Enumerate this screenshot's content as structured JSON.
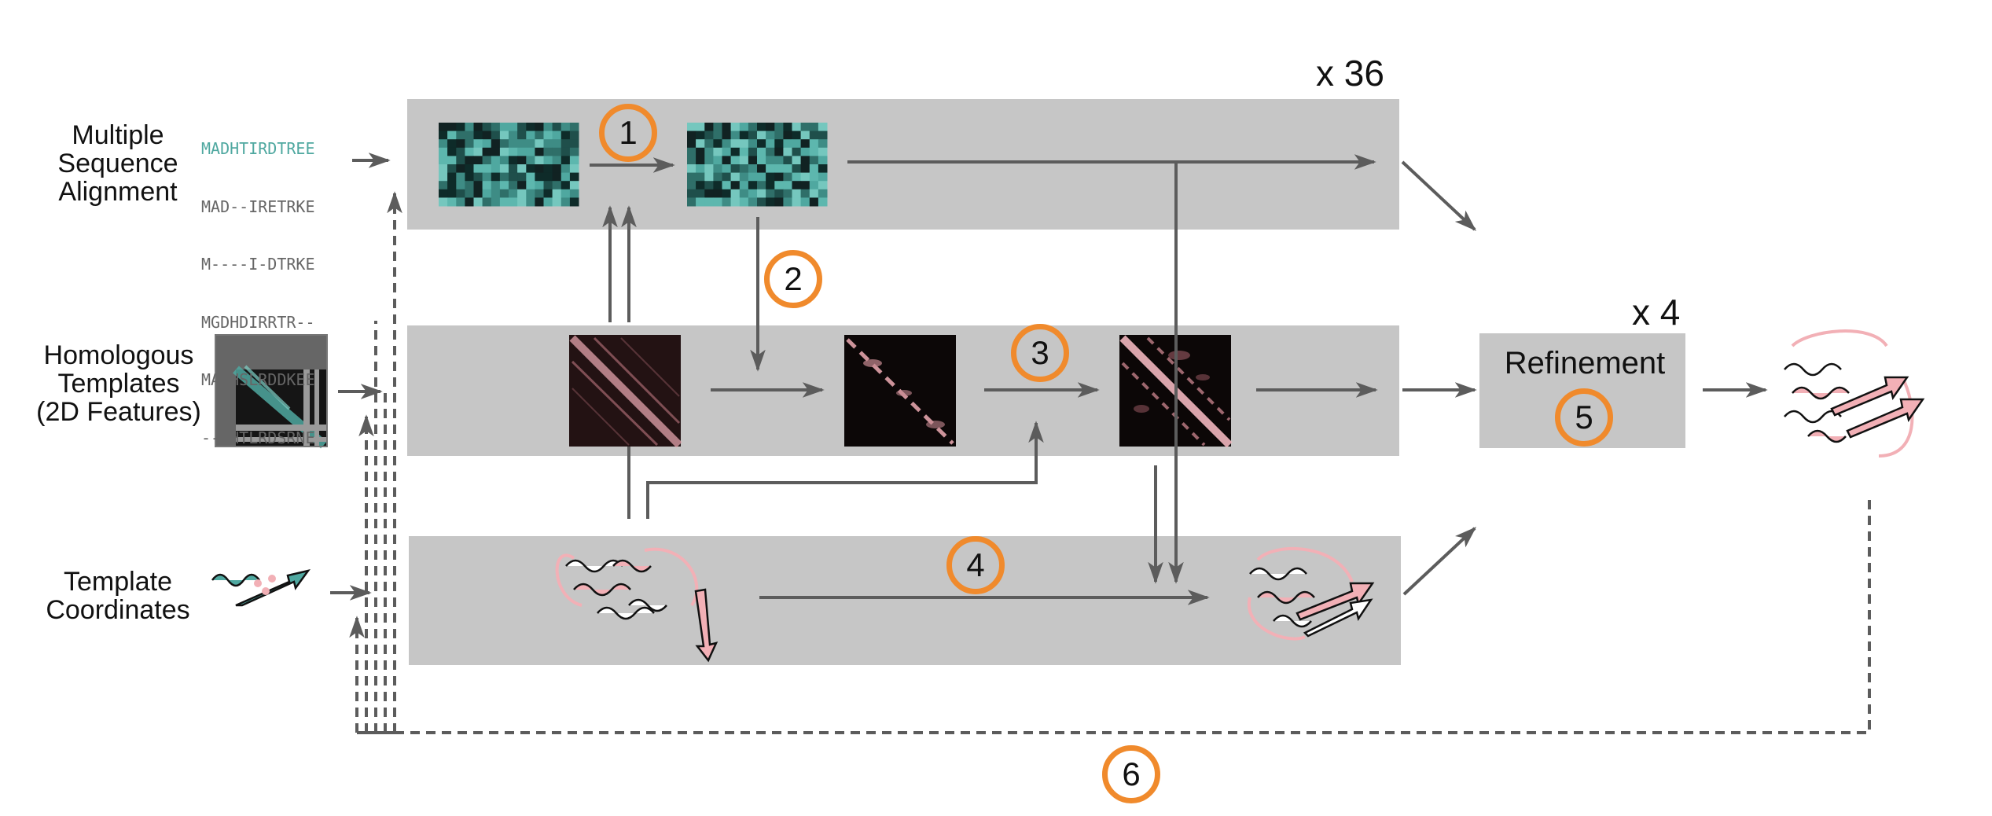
{
  "inputs": {
    "msa_label": [
      "Multiple",
      "Sequence",
      "Alignment"
    ],
    "templates_label": [
      "Homologous",
      "Templates",
      "(2D Features)"
    ],
    "coords_label": [
      "Template",
      "Coordinates"
    ]
  },
  "sequences": [
    "MADHTIRDTREE",
    "MAD--IRETRKE",
    "M----I-DTRKE",
    "MGDHDIRRTR--",
    "MAEHSLRDDKEE",
    "---HTLRDSRNE"
  ],
  "multipliers": {
    "trunk": "x 36",
    "refinement": "x 4"
  },
  "refinement": {
    "label": "Refinement"
  },
  "steps": [
    "1",
    "2",
    "3",
    "4",
    "5",
    "6"
  ],
  "colors": {
    "band": "#c6c6c6",
    "arrow": "#5c5c5c",
    "step_ring": "#f08a2c",
    "msa_teal": "#4fa8a0",
    "protein_pink": "#f2b0b6",
    "pair_dark": "#0c0707"
  },
  "icons": [
    "msa-heatmap-icon",
    "pair-map-icon",
    "protein-ribbon-icon",
    "template-2d-features-icon"
  ]
}
